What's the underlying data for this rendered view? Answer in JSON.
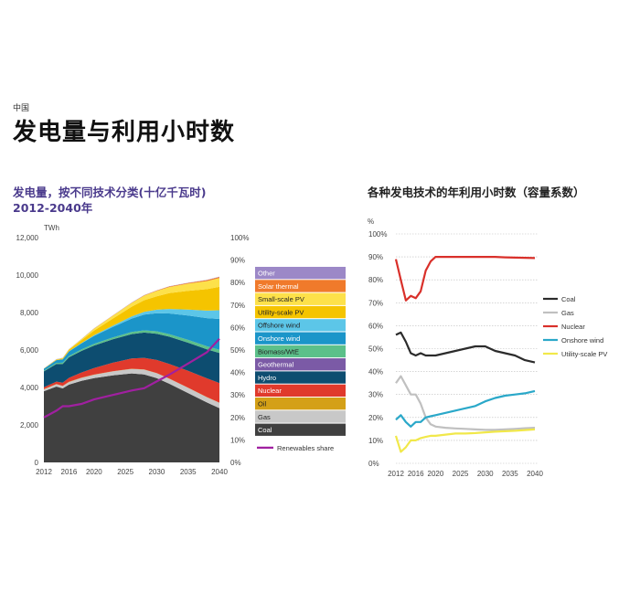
{
  "header": {
    "region": "中国",
    "title": "发电量与利用小时数"
  },
  "left_chart": {
    "title": "发电量，按不同技术分类(十亿千瓦时)",
    "subtitle": "2012-2040年"
  },
  "right_chart": {
    "title": "各种发电技术的年利用小时数（容量系数）"
  },
  "colors": {
    "Coal": "#404040",
    "Gas": "#c8c8c8",
    "Oil": "#d4a017",
    "Nuclear": "#e03a2c",
    "Hydro": "#0d4d70",
    "Geothermal": "#7b5aa6",
    "Biomass/WtE": "#5cc08a",
    "Onshore wind": "#1b95c9",
    "Offshore wind": "#5cc6e8",
    "Utility-scale PV": "#f5c400",
    "Small-scale PV": "#fde14a",
    "Solar thermal": "#f07a2b",
    "Other": "#9c88c7",
    "Renewables share": "#a020a0",
    "line_coal": "#2b2b2b",
    "line_gas": "#c0c0c0",
    "line_nuclear": "#d9302a",
    "line_onshore": "#2aa8c9",
    "line_pv": "#f1e84a"
  },
  "chart_data": [
    {
      "type": "area",
      "stacked": true,
      "x": [
        2012,
        2014,
        2015,
        2016,
        2018,
        2020,
        2023,
        2026,
        2028,
        2030,
        2032,
        2035,
        2038,
        2040
      ],
      "xticks": [
        2012,
        2016,
        2020,
        2025,
        2030,
        2035,
        2040
      ],
      "ylim": [
        0,
        12000
      ],
      "yticks": [
        0,
        2000,
        4000,
        6000,
        8000,
        10000,
        12000
      ],
      "ylabel": "TWh",
      "y2lim": [
        0,
        100
      ],
      "y2ticks": [
        "0%",
        "10%",
        "20%",
        "30%",
        "40%",
        "50%",
        "60%",
        "70%",
        "80%",
        "90%",
        "100%"
      ],
      "series": [
        {
          "name": "Coal",
          "values": [
            3800,
            4050,
            3950,
            4150,
            4350,
            4500,
            4650,
            4750,
            4700,
            4500,
            4200,
            3700,
            3200,
            2900
          ]
        },
        {
          "name": "Gas",
          "values": [
            100,
            120,
            130,
            140,
            160,
            180,
            210,
            240,
            250,
            260,
            270,
            280,
            280,
            280
          ]
        },
        {
          "name": "Oil",
          "values": [
            10,
            10,
            10,
            10,
            10,
            10,
            10,
            10,
            10,
            10,
            10,
            10,
            10,
            10
          ]
        },
        {
          "name": "Nuclear",
          "values": [
            100,
            130,
            170,
            210,
            280,
            350,
            450,
            550,
            620,
            700,
            780,
            900,
            1000,
            1050
          ]
        },
        {
          "name": "Hydro",
          "values": [
            850,
            950,
            1000,
            1100,
            1150,
            1200,
            1250,
            1300,
            1350,
            1400,
            1450,
            1500,
            1550,
            1600
          ]
        },
        {
          "name": "Geothermal",
          "values": [
            0,
            0,
            0,
            0,
            0,
            0,
            0,
            0,
            0,
            0,
            0,
            0,
            0,
            0
          ]
        },
        {
          "name": "Biomass/WtE",
          "values": [
            40,
            50,
            60,
            70,
            80,
            90,
            100,
            110,
            120,
            130,
            140,
            150,
            160,
            170
          ]
        },
        {
          "name": "Onshore wind",
          "values": [
            100,
            150,
            180,
            240,
            320,
            420,
            560,
            720,
            840,
            960,
            1100,
            1300,
            1500,
            1650
          ]
        },
        {
          "name": "Offshore wind",
          "values": [
            0,
            0,
            5,
            10,
            20,
            40,
            70,
            110,
            150,
            190,
            240,
            320,
            400,
            460
          ]
        },
        {
          "name": "Utility-scale PV",
          "values": [
            10,
            30,
            50,
            80,
            150,
            250,
            380,
            520,
            620,
            720,
            850,
            1000,
            1150,
            1250
          ]
        },
        {
          "name": "Small-scale PV",
          "values": [
            0,
            10,
            20,
            30,
            60,
            100,
            150,
            200,
            240,
            280,
            320,
            380,
            430,
            470
          ]
        },
        {
          "name": "Solar thermal",
          "values": [
            0,
            0,
            0,
            0,
            0,
            5,
            10,
            15,
            20,
            25,
            30,
            40,
            50,
            60
          ]
        },
        {
          "name": "Other",
          "values": [
            10,
            10,
            10,
            10,
            10,
            10,
            10,
            10,
            10,
            10,
            10,
            10,
            10,
            10
          ]
        }
      ],
      "line_series": {
        "name": "Renewables share",
        "axis": "right",
        "x": [
          2012,
          2014,
          2015,
          2016,
          2018,
          2020,
          2023,
          2026,
          2028,
          2030,
          2032,
          2035,
          2038,
          2040
        ],
        "values": [
          20,
          23,
          25,
          25,
          26,
          28,
          30,
          32,
          33,
          36,
          39,
          44,
          49,
          55
        ]
      },
      "legend": [
        "Other",
        "Solar thermal",
        "Small-scale PV",
        "Utility-scale PV",
        "Offshore wind",
        "Onshore wind",
        "Biomass/WtE",
        "Geothermal",
        "Hydro",
        "Nuclear",
        "Oil",
        "Gas",
        "Coal"
      ],
      "line_legend": "Renewables share"
    },
    {
      "type": "line",
      "x": [
        2012,
        2013,
        2014,
        2015,
        2016,
        2017,
        2018,
        2019,
        2020,
        2022,
        2024,
        2026,
        2028,
        2030,
        2032,
        2034,
        2036,
        2038,
        2040
      ],
      "xticks": [
        2012,
        2016,
        2020,
        2025,
        2030,
        2035,
        2040
      ],
      "ylim": [
        0,
        100
      ],
      "yticks": [
        "0%",
        "10%",
        "20%",
        "30%",
        "40%",
        "50%",
        "60%",
        "70%",
        "80%",
        "90%",
        "100%"
      ],
      "ylabel": "%",
      "series": [
        {
          "name": "Coal",
          "values": [
            56,
            57,
            53,
            48,
            47,
            48,
            47,
            47,
            47,
            48,
            49,
            50,
            51,
            51,
            49,
            48,
            47,
            45,
            44
          ]
        },
        {
          "name": "Gas",
          "values": [
            35,
            38,
            34,
            30,
            30,
            26,
            20,
            17,
            16,
            15.5,
            15.2,
            15,
            14.8,
            14.6,
            14.6,
            14.8,
            15,
            15.3,
            15.5
          ]
        },
        {
          "name": "Nuclear",
          "values": [
            89,
            80,
            71,
            73,
            72,
            75,
            84,
            88,
            90,
            90,
            90,
            90,
            90,
            90,
            90,
            89.8,
            89.7,
            89.6,
            89.5
          ]
        },
        {
          "name": "Onshore wind",
          "values": [
            19,
            21,
            18,
            16,
            18,
            18,
            20,
            20.5,
            21,
            22,
            23,
            24,
            25,
            27,
            28.5,
            29.5,
            30,
            30.5,
            31.5
          ]
        },
        {
          "name": "Utility-scale PV",
          "values": [
            12,
            5,
            7,
            10,
            10,
            11,
            11.5,
            12,
            12,
            12.5,
            13,
            13,
            13.2,
            13.5,
            13.8,
            14,
            14.2,
            14.5,
            14.8
          ]
        }
      ],
      "legend": [
        "Coal",
        "Gas",
        "Nuclear",
        "Onshore wind",
        "Utility-scale PV"
      ]
    }
  ]
}
